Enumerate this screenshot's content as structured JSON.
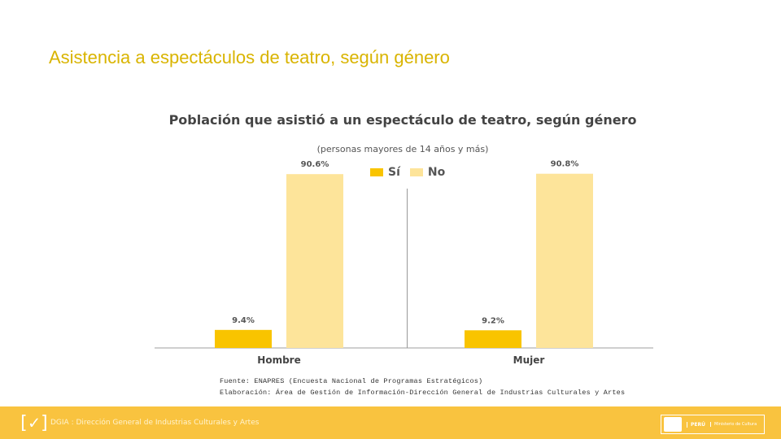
{
  "slide": {
    "title": "Asistencia a espectáculos de teatro, según género"
  },
  "chart_data": {
    "type": "bar",
    "title": "Población que asistió a un espectáculo de teatro, según género",
    "subtitle": "(personas mayores de 14 años y más)",
    "categories": [
      "Hombre",
      "Mujer"
    ],
    "series": [
      {
        "name": "Sí",
        "values": [
          9.4,
          9.2
        ],
        "labels": [
          "9.4%",
          "9.2%"
        ],
        "color": "#f9c400"
      },
      {
        "name": "No",
        "values": [
          90.6,
          90.8
        ],
        "labels": [
          "90.6%",
          "90.8%"
        ],
        "color": "#fde49a"
      }
    ],
    "ylim": [
      0,
      100
    ],
    "grid": false,
    "legend": "top"
  },
  "source": {
    "line1": "Fuente: ENAPRES (Encuesta Nacional de Programas Estratégicos)",
    "line2": "Elaboración: Área de Gestión de Información-Dirección General de Industrias Culturales y Artes"
  },
  "footer": {
    "text": "DGIA : Dirección General de Industrias Culturales y Artes",
    "badge_peru": "PERÚ",
    "badge_ministry": "Ministerio de Cultura"
  }
}
